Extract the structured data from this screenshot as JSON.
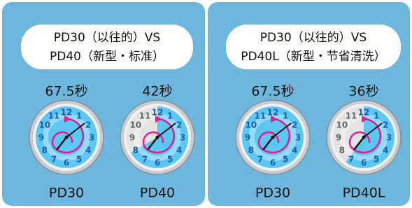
{
  "panels": [
    {
      "title_lines": [
        "PD30（以往的）VS",
        "PD40（新型・标准）"
      ],
      "clocks": [
        {
          "time": "67.5秒",
          "model": "PD30"
        },
        {
          "time": "42秒",
          "model": "PD40"
        }
      ]
    },
    {
      "title_lines": [
        "PD30（以往的）VS",
        "PD40L（新型・节省清洗）"
      ],
      "clocks": [
        {
          "time": "67.5秒",
          "model": "PD30"
        },
        {
          "time": "36秒",
          "model": "PD40L"
        }
      ]
    }
  ],
  "dial_numbers": [
    "12",
    "1",
    "2",
    "3",
    "4",
    "5",
    "6",
    "7",
    "8",
    "9",
    "10",
    "11"
  ]
}
